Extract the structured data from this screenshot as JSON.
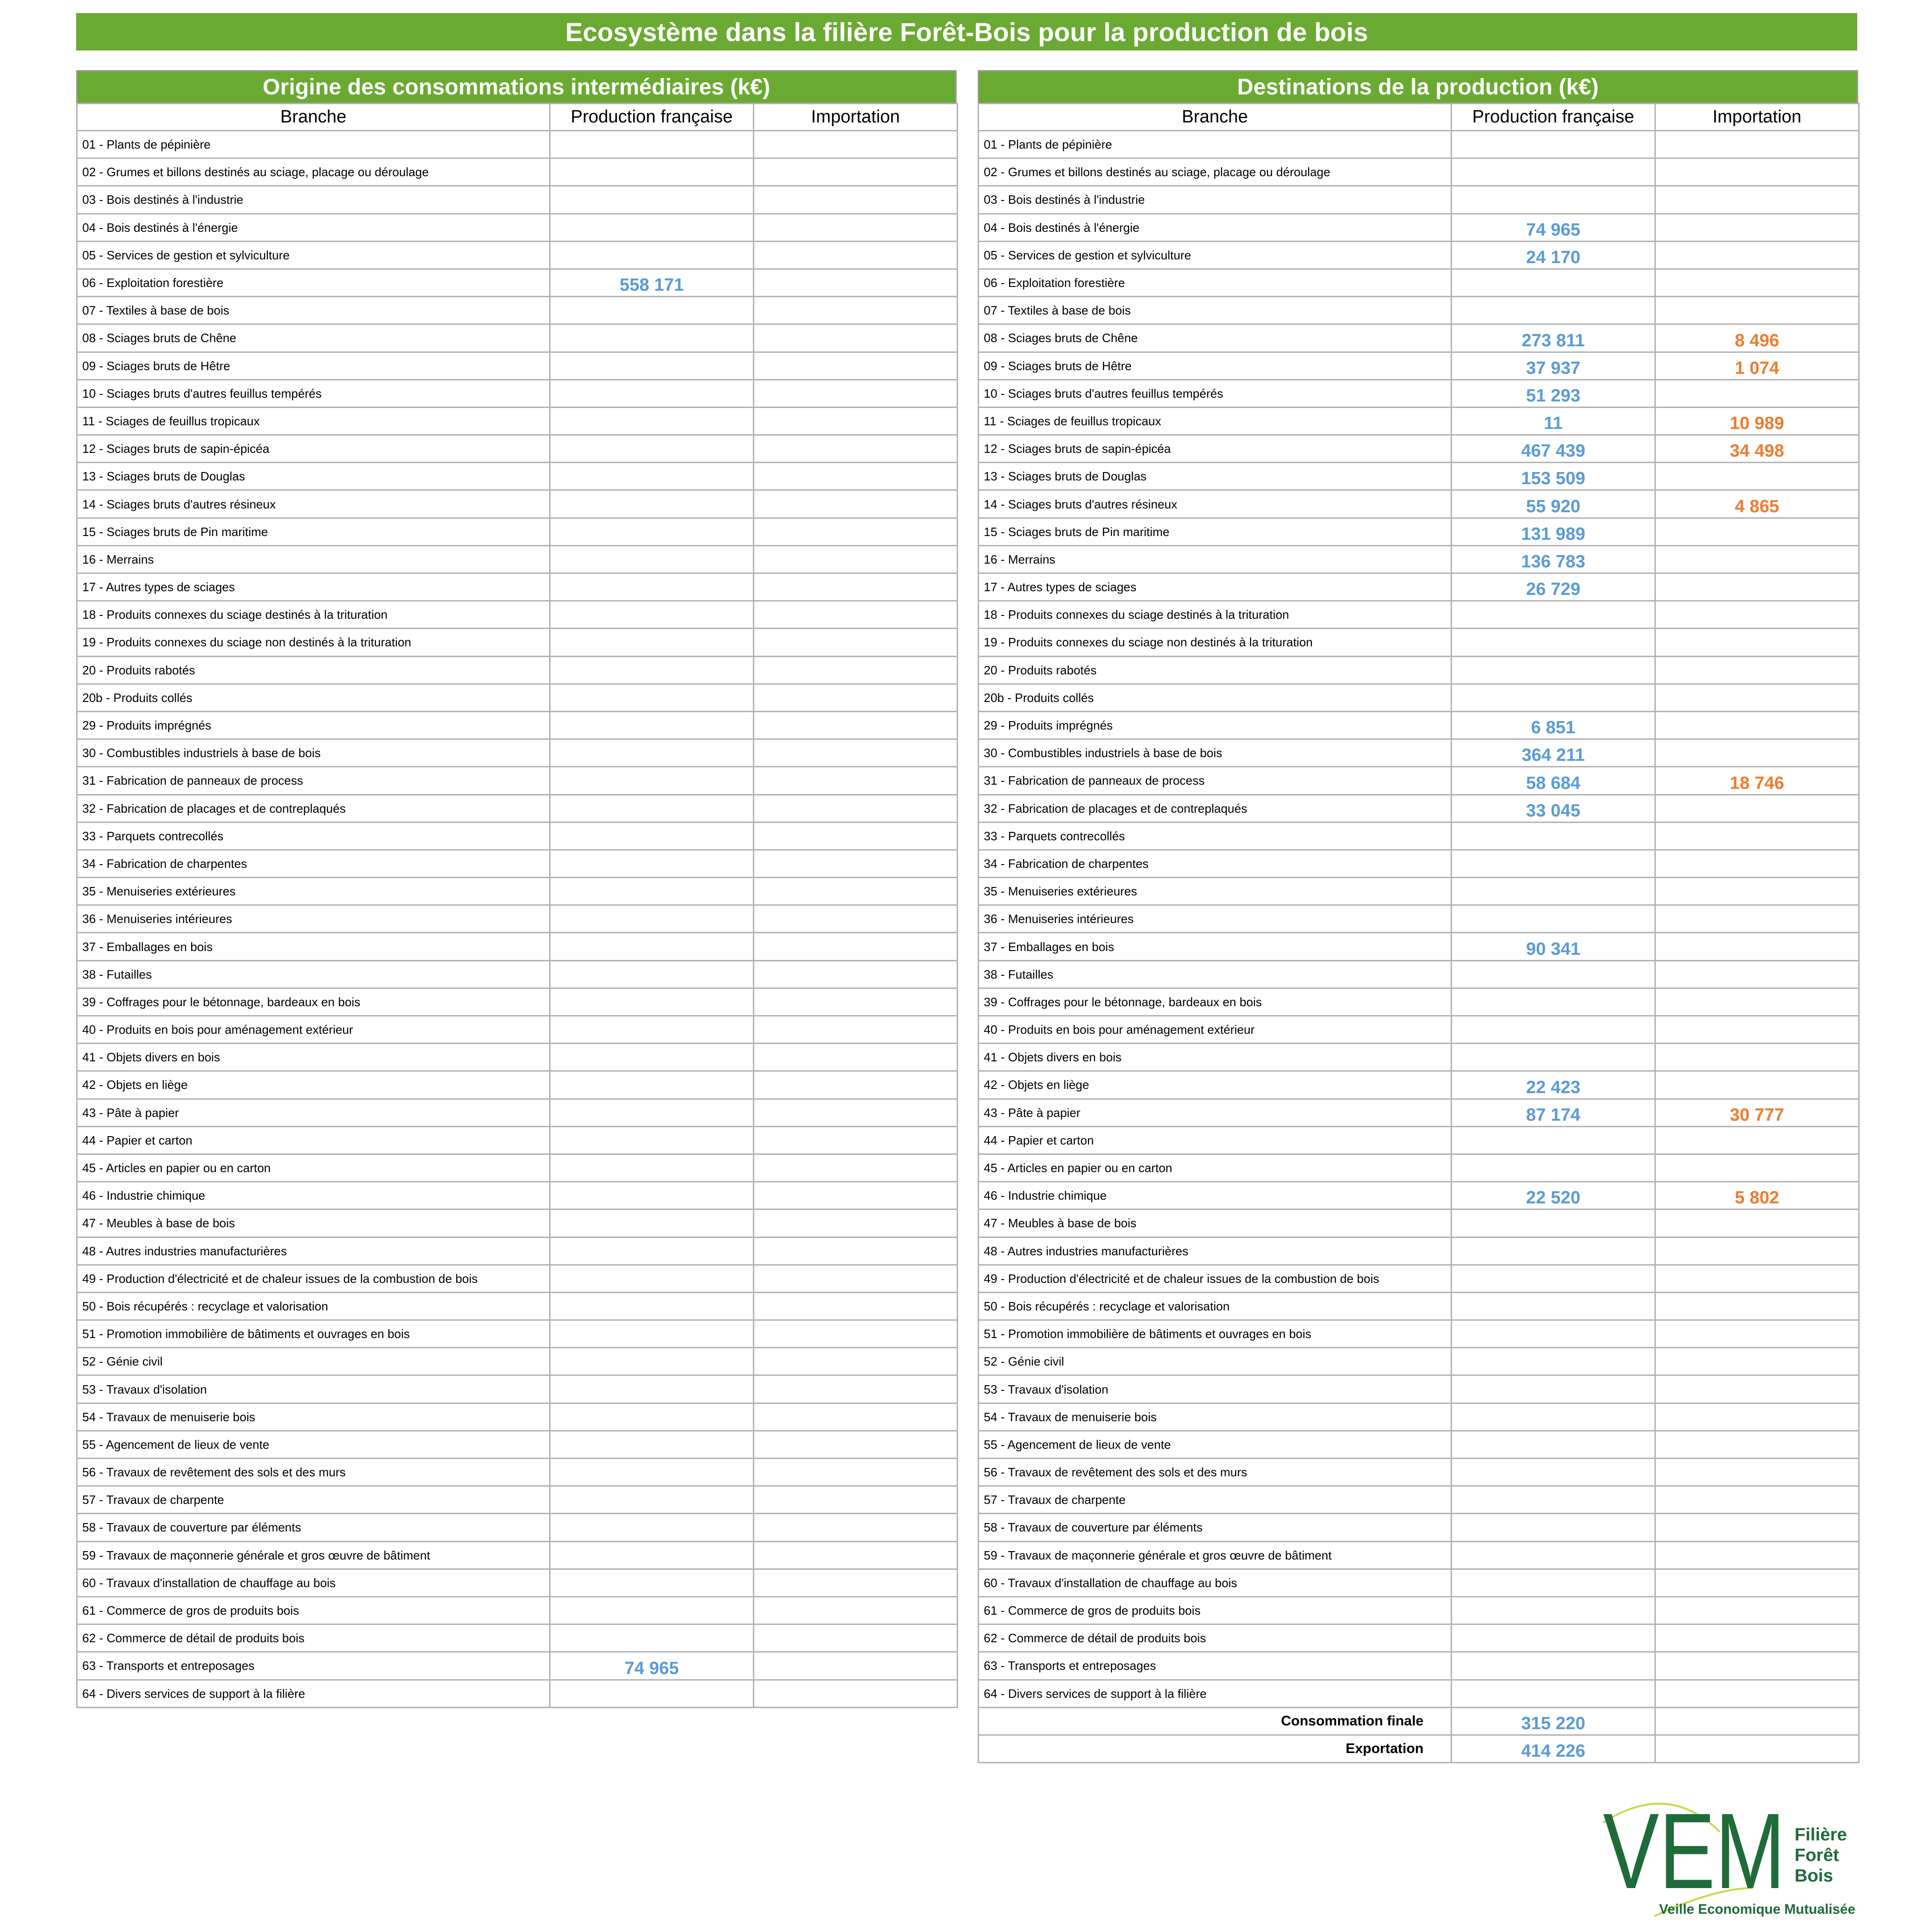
{
  "title": "Ecosystème dans la filière Forêt-Bois pour la production de bois",
  "headers": {
    "branche": "Branche",
    "production_francaise": "Production française",
    "importation": "Importation"
  },
  "left_table": {
    "title": "Origine des consommations intermédiaires (k€)",
    "rows": [
      {
        "label": "01 - Plants de pépinière",
        "fr": "",
        "imp": ""
      },
      {
        "label": "02 - Grumes et billons destinés au sciage, placage ou déroulage",
        "fr": "",
        "imp": ""
      },
      {
        "label": "03 - Bois destinés à l'industrie",
        "fr": "",
        "imp": ""
      },
      {
        "label": "04 - Bois destinés à l'énergie",
        "fr": "",
        "imp": ""
      },
      {
        "label": "05 - Services de gestion et sylviculture",
        "fr": "",
        "imp": ""
      },
      {
        "label": "06 - Exploitation forestière",
        "fr": "558 171",
        "imp": ""
      },
      {
        "label": "07 - Textiles à base de bois",
        "fr": "",
        "imp": ""
      },
      {
        "label": "08 - Sciages bruts de Chêne",
        "fr": "",
        "imp": ""
      },
      {
        "label": "09 - Sciages bruts de Hêtre",
        "fr": "",
        "imp": ""
      },
      {
        "label": "10 - Sciages bruts d'autres feuillus tempérés",
        "fr": "",
        "imp": ""
      },
      {
        "label": "11 - Sciages de feuillus tropicaux",
        "fr": "",
        "imp": ""
      },
      {
        "label": "12 - Sciages bruts de sapin-épicéa",
        "fr": "",
        "imp": ""
      },
      {
        "label": "13 - Sciages bruts de Douglas",
        "fr": "",
        "imp": ""
      },
      {
        "label": "14 - Sciages bruts d'autres résineux",
        "fr": "",
        "imp": ""
      },
      {
        "label": "15 - Sciages bruts de Pin maritime",
        "fr": "",
        "imp": ""
      },
      {
        "label": "16 - Merrains",
        "fr": "",
        "imp": ""
      },
      {
        "label": "17 - Autres types de sciages",
        "fr": "",
        "imp": ""
      },
      {
        "label": "18 - Produits connexes du sciage destinés à la trituration",
        "fr": "",
        "imp": ""
      },
      {
        "label": "19 - Produits connexes du sciage non destinés à la trituration",
        "fr": "",
        "imp": ""
      },
      {
        "label": "20 - Produits rabotés",
        "fr": "",
        "imp": ""
      },
      {
        "label": "20b - Produits collés",
        "fr": "",
        "imp": ""
      },
      {
        "label": "29 - Produits imprégnés",
        "fr": "",
        "imp": ""
      },
      {
        "label": "30 - Combustibles industriels à base de bois",
        "fr": "",
        "imp": ""
      },
      {
        "label": "31 - Fabrication de panneaux de process",
        "fr": "",
        "imp": ""
      },
      {
        "label": "32 - Fabrication de placages et de contreplaqués",
        "fr": "",
        "imp": ""
      },
      {
        "label": "33 - Parquets contrecollés",
        "fr": "",
        "imp": ""
      },
      {
        "label": "34 - Fabrication de charpentes",
        "fr": "",
        "imp": ""
      },
      {
        "label": "35 - Menuiseries extérieures",
        "fr": "",
        "imp": ""
      },
      {
        "label": "36 - Menuiseries intérieures",
        "fr": "",
        "imp": ""
      },
      {
        "label": "37 - Emballages en bois",
        "fr": "",
        "imp": ""
      },
      {
        "label": "38 - Futailles",
        "fr": "",
        "imp": ""
      },
      {
        "label": "39 - Coffrages pour le bétonnage, bardeaux en bois",
        "fr": "",
        "imp": ""
      },
      {
        "label": "40 - Produits en bois pour aménagement extérieur",
        "fr": "",
        "imp": ""
      },
      {
        "label": "41 - Objets divers en bois",
        "fr": "",
        "imp": ""
      },
      {
        "label": "42 - Objets en liège",
        "fr": "",
        "imp": ""
      },
      {
        "label": "43 - Pâte à papier",
        "fr": "",
        "imp": ""
      },
      {
        "label": "44 - Papier et carton",
        "fr": "",
        "imp": ""
      },
      {
        "label": "45 - Articles en papier ou en carton",
        "fr": "",
        "imp": ""
      },
      {
        "label": "46 - Industrie chimique",
        "fr": "",
        "imp": ""
      },
      {
        "label": "47 - Meubles à base de bois",
        "fr": "",
        "imp": ""
      },
      {
        "label": "48 - Autres industries manufacturières",
        "fr": "",
        "imp": ""
      },
      {
        "label": "49 - Production d'électricité et de chaleur issues de la combustion de bois",
        "fr": "",
        "imp": ""
      },
      {
        "label": "50 - Bois récupérés : recyclage et valorisation",
        "fr": "",
        "imp": ""
      },
      {
        "label": "51 - Promotion immobilière de bâtiments et ouvrages en bois",
        "fr": "",
        "imp": ""
      },
      {
        "label": "52 - Génie civil",
        "fr": "",
        "imp": ""
      },
      {
        "label": "53 - Travaux d'isolation",
        "fr": "",
        "imp": ""
      },
      {
        "label": "54 - Travaux de menuiserie bois",
        "fr": "",
        "imp": ""
      },
      {
        "label": "55 - Agencement de lieux de vente",
        "fr": "",
        "imp": ""
      },
      {
        "label": "56 - Travaux de revêtement des sols et des murs",
        "fr": "",
        "imp": ""
      },
      {
        "label": "57 - Travaux de charpente",
        "fr": "",
        "imp": ""
      },
      {
        "label": "58 - Travaux de couverture par éléments",
        "fr": "",
        "imp": ""
      },
      {
        "label": "59 - Travaux de maçonnerie générale et gros œuvre de bâtiment",
        "fr": "",
        "imp": ""
      },
      {
        "label": "60 - Travaux d'installation de chauffage au bois",
        "fr": "",
        "imp": ""
      },
      {
        "label": "61 - Commerce de gros de produits bois",
        "fr": "",
        "imp": ""
      },
      {
        "label": "62 - Commerce de détail de produits bois",
        "fr": "",
        "imp": ""
      },
      {
        "label": "63 - Transports et entreposages",
        "fr": "74 965",
        "imp": ""
      },
      {
        "label": "64 - Divers services de support à la filière",
        "fr": "",
        "imp": ""
      }
    ]
  },
  "right_table": {
    "title": "Destinations de la production (k€)",
    "rows": [
      {
        "label": "01 - Plants de pépinière",
        "fr": "",
        "imp": ""
      },
      {
        "label": "02 - Grumes et billons destinés au sciage, placage ou déroulage",
        "fr": "",
        "imp": ""
      },
      {
        "label": "03 - Bois destinés à l'industrie",
        "fr": "",
        "imp": ""
      },
      {
        "label": "04 - Bois destinés à l'énergie",
        "fr": "74 965",
        "imp": ""
      },
      {
        "label": "05 - Services de gestion et sylviculture",
        "fr": "24 170",
        "imp": ""
      },
      {
        "label": "06 - Exploitation forestière",
        "fr": "",
        "imp": ""
      },
      {
        "label": "07 - Textiles à base de bois",
        "fr": "",
        "imp": ""
      },
      {
        "label": "08 - Sciages bruts de Chêne",
        "fr": "273 811",
        "imp": "8 496"
      },
      {
        "label": "09 - Sciages bruts de Hêtre",
        "fr": "37 937",
        "imp": "1 074"
      },
      {
        "label": "10 - Sciages bruts d'autres feuillus tempérés",
        "fr": "51 293",
        "imp": ""
      },
      {
        "label": "11 - Sciages de feuillus tropicaux",
        "fr": "11",
        "imp": "10 989"
      },
      {
        "label": "12 - Sciages bruts de sapin-épicéa",
        "fr": "467 439",
        "imp": "34 498"
      },
      {
        "label": "13 - Sciages bruts de Douglas",
        "fr": "153 509",
        "imp": ""
      },
      {
        "label": "14 - Sciages bruts d'autres résineux",
        "fr": "55 920",
        "imp": "4 865"
      },
      {
        "label": "15 - Sciages bruts de Pin maritime",
        "fr": "131 989",
        "imp": ""
      },
      {
        "label": "16 - Merrains",
        "fr": "136 783",
        "imp": ""
      },
      {
        "label": "17 - Autres types de sciages",
        "fr": "26 729",
        "imp": ""
      },
      {
        "label": "18 - Produits connexes du sciage destinés à la trituration",
        "fr": "",
        "imp": ""
      },
      {
        "label": "19 - Produits connexes du sciage non destinés à la trituration",
        "fr": "",
        "imp": ""
      },
      {
        "label": "20 - Produits rabotés",
        "fr": "",
        "imp": ""
      },
      {
        "label": "20b - Produits collés",
        "fr": "",
        "imp": ""
      },
      {
        "label": "29 - Produits imprégnés",
        "fr": "6 851",
        "imp": ""
      },
      {
        "label": "30 - Combustibles industriels à base de bois",
        "fr": "364 211",
        "imp": ""
      },
      {
        "label": "31 - Fabrication de panneaux de process",
        "fr": "58 684",
        "imp": "18 746"
      },
      {
        "label": "32 - Fabrication de placages et de contreplaqués",
        "fr": "33 045",
        "imp": ""
      },
      {
        "label": "33 - Parquets contrecollés",
        "fr": "",
        "imp": ""
      },
      {
        "label": "34 - Fabrication de charpentes",
        "fr": "",
        "imp": ""
      },
      {
        "label": "35 - Menuiseries extérieures",
        "fr": "",
        "imp": ""
      },
      {
        "label": "36 - Menuiseries intérieures",
        "fr": "",
        "imp": ""
      },
      {
        "label": "37 - Emballages en bois",
        "fr": "90 341",
        "imp": ""
      },
      {
        "label": "38 - Futailles",
        "fr": "",
        "imp": ""
      },
      {
        "label": "39 - Coffrages pour le bétonnage, bardeaux en bois",
        "fr": "",
        "imp": ""
      },
      {
        "label": "40 - Produits en bois pour aménagement extérieur",
        "fr": "",
        "imp": ""
      },
      {
        "label": "41 - Objets divers en bois",
        "fr": "",
        "imp": ""
      },
      {
        "label": "42 - Objets en liège",
        "fr": "22 423",
        "imp": ""
      },
      {
        "label": "43 - Pâte à papier",
        "fr": "87 174",
        "imp": "30 777"
      },
      {
        "label": "44 - Papier et carton",
        "fr": "",
        "imp": ""
      },
      {
        "label": "45 - Articles en papier ou en carton",
        "fr": "",
        "imp": ""
      },
      {
        "label": "46 - Industrie chimique",
        "fr": "22 520",
        "imp": "5 802"
      },
      {
        "label": "47 - Meubles à base de bois",
        "fr": "",
        "imp": ""
      },
      {
        "label": "48 - Autres industries manufacturières",
        "fr": "",
        "imp": ""
      },
      {
        "label": "49 - Production d'électricité et de chaleur issues de la combustion de bois",
        "fr": "",
        "imp": ""
      },
      {
        "label": "50 - Bois récupérés : recyclage et valorisation",
        "fr": "",
        "imp": ""
      },
      {
        "label": "51 - Promotion immobilière de bâtiments et ouvrages en bois",
        "fr": "",
        "imp": ""
      },
      {
        "label": "52 - Génie civil",
        "fr": "",
        "imp": ""
      },
      {
        "label": "53 - Travaux d'isolation",
        "fr": "",
        "imp": ""
      },
      {
        "label": "54 - Travaux de menuiserie bois",
        "fr": "",
        "imp": ""
      },
      {
        "label": "55 - Agencement de lieux de vente",
        "fr": "",
        "imp": ""
      },
      {
        "label": "56 - Travaux de revêtement des sols et des murs",
        "fr": "",
        "imp": ""
      },
      {
        "label": "57 - Travaux de charpente",
        "fr": "",
        "imp": ""
      },
      {
        "label": "58 - Travaux de couverture par éléments",
        "fr": "",
        "imp": ""
      },
      {
        "label": "59 - Travaux de maçonnerie générale et gros œuvre de bâtiment",
        "fr": "",
        "imp": ""
      },
      {
        "label": "60 - Travaux d'installation de chauffage au bois",
        "fr": "",
        "imp": ""
      },
      {
        "label": "61 - Commerce de gros de produits bois",
        "fr": "",
        "imp": ""
      },
      {
        "label": "62 - Commerce de détail de produits bois",
        "fr": "",
        "imp": ""
      },
      {
        "label": "63 - Transports et entreposages",
        "fr": "",
        "imp": ""
      },
      {
        "label": "64 - Divers services de support à la filière",
        "fr": "",
        "imp": ""
      }
    ],
    "totals": [
      {
        "label": "Consommation finale",
        "fr": "315 220",
        "imp": ""
      },
      {
        "label": "Exportation",
        "fr": "414 226",
        "imp": ""
      }
    ]
  },
  "logo": {
    "mark": "VEM",
    "line1": "Filière",
    "line2": "Forêt",
    "line3": "Bois",
    "tagline": "Veille Economique Mutualisée"
  },
  "colors": {
    "header_green": "#6aaa32",
    "french_production_blue": "#5b9bd5",
    "importation_orange": "#ed7d31",
    "logo_green": "#1f6b3a",
    "logo_accent": "#c8d94a"
  }
}
